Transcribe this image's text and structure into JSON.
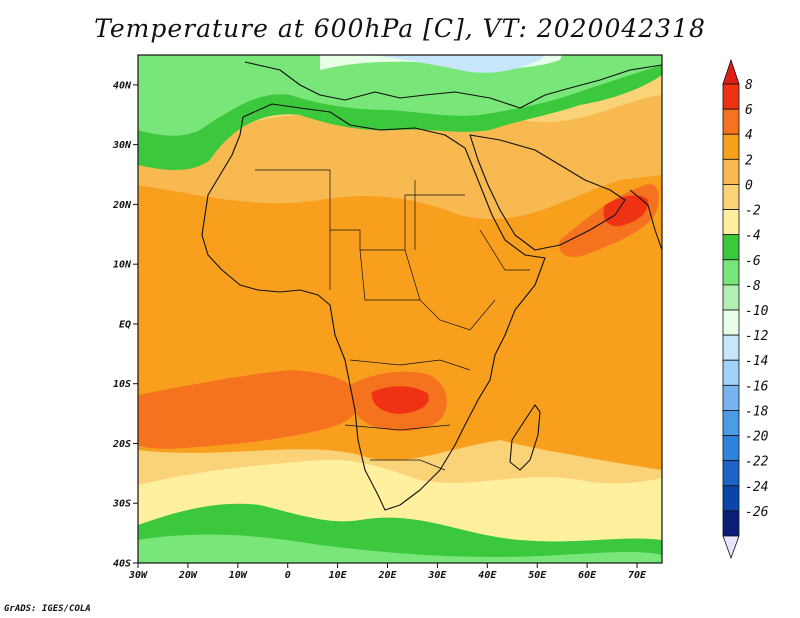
{
  "title": "Temperature at 600hPa [C], VT: 2020042318",
  "credit": "GrADS: IGES/COLA",
  "map": {
    "lon_range": [
      -30,
      75
    ],
    "lat_range": [
      -40,
      45
    ],
    "x_ticks": [
      {
        "lon": -30,
        "label": "30W"
      },
      {
        "lon": -20,
        "label": "20W"
      },
      {
        "lon": -10,
        "label": "10W"
      },
      {
        "lon": 0,
        "label": "0"
      },
      {
        "lon": 10,
        "label": "10E"
      },
      {
        "lon": 20,
        "label": "20E"
      },
      {
        "lon": 30,
        "label": "30E"
      },
      {
        "lon": 40,
        "label": "40E"
      },
      {
        "lon": 50,
        "label": "50E"
      },
      {
        "lon": 60,
        "label": "60E"
      },
      {
        "lon": 70,
        "label": "70E"
      }
    ],
    "y_ticks": [
      {
        "lat": 40,
        "label": "40N"
      },
      {
        "lat": 30,
        "label": "30N"
      },
      {
        "lat": 20,
        "label": "20N"
      },
      {
        "lat": 10,
        "label": "10N"
      },
      {
        "lat": 0,
        "label": "EQ"
      },
      {
        "lat": -10,
        "label": "10S"
      },
      {
        "lat": -20,
        "label": "20S"
      },
      {
        "lat": -30,
        "label": "30S"
      },
      {
        "lat": -40,
        "label": "40S"
      }
    ]
  },
  "colorbar": {
    "levels": [
      "8",
      "6",
      "4",
      "2",
      "0",
      "-2",
      "-4",
      "-6",
      "-8",
      "-10",
      "-12",
      "-14",
      "-16",
      "-18",
      "-20",
      "-22",
      "-24",
      "-26"
    ],
    "colors": [
      "#f03214",
      "#f5731e",
      "#f8a01e",
      "#f8b950",
      "#fad278",
      "#fff0a0",
      "#3cc83c",
      "#78e678",
      "#b4f0b4",
      "#e6ffe6",
      "#c8e6fa",
      "#a0d2fa",
      "#78b4f0",
      "#4b9be6",
      "#2d82dc",
      "#1e64c8",
      "#0a46aa",
      "#0a1e78"
    ],
    "top_color": "#e11e14",
    "bottom_color": "#e6e6ff"
  },
  "fields": [
    {
      "name": "north-green-belt",
      "color": "#3cc83c"
    },
    {
      "name": "europe-light-green",
      "color": "#78e678"
    },
    {
      "name": "mediterranean-pale",
      "color": "#e6ffe6"
    },
    {
      "name": "alps-light-blue",
      "color": "#c8e6fa"
    },
    {
      "name": "sahara-orange",
      "color": "#f8b950"
    },
    {
      "name": "tropics-orange",
      "color": "#f8a01e"
    },
    {
      "name": "arabian-sea-hot",
      "color": "#f5731e"
    },
    {
      "name": "southern-warm",
      "color": "#f8a01e"
    },
    {
      "name": "zambia-hot",
      "color": "#f5731e"
    },
    {
      "name": "zambia-hottest",
      "color": "#f03214"
    },
    {
      "name": "south-yellow",
      "color": "#fff0a0"
    },
    {
      "name": "southern-ocean-green",
      "color": "#3cc83c"
    }
  ]
}
